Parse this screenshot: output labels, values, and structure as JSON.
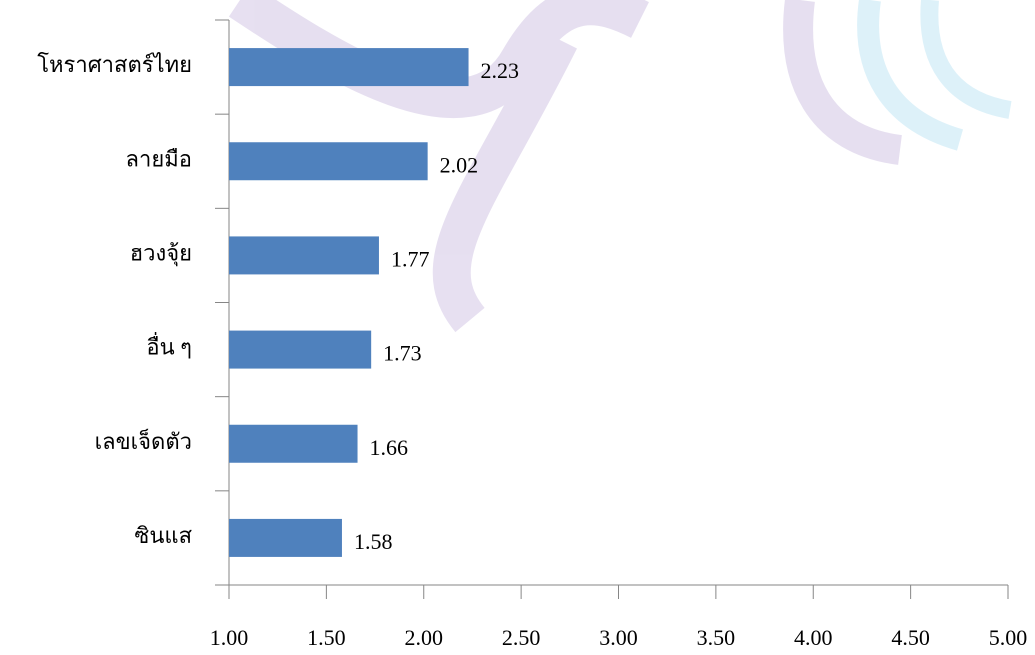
{
  "chart_data": {
    "type": "barh",
    "categories": [
      "โหราศาสตร์ไทย",
      "ลายมือ",
      "ฮวงจุ้ย",
      "อื่น ๆ",
      "เลขเจ็ดตัว",
      "ซินแส"
    ],
    "values": [
      2.23,
      2.02,
      1.77,
      1.73,
      1.66,
      1.58
    ],
    "color": "#4f81bd",
    "xlim": [
      1,
      5
    ],
    "xticks": [
      {
        "value": 1,
        "label": "1.00"
      },
      {
        "value": 1.5,
        "label": "1.50"
      },
      {
        "value": 2,
        "label": "2.00"
      },
      {
        "value": 2.5,
        "label": "2.50"
      },
      {
        "value": 3,
        "label": "3.00"
      },
      {
        "value": 3.5,
        "label": "3.50"
      },
      {
        "value": 4,
        "label": "4.00"
      },
      {
        "value": 4.5,
        "label": "4.50"
      },
      {
        "value": 5,
        "label": "5.00"
      }
    ]
  }
}
